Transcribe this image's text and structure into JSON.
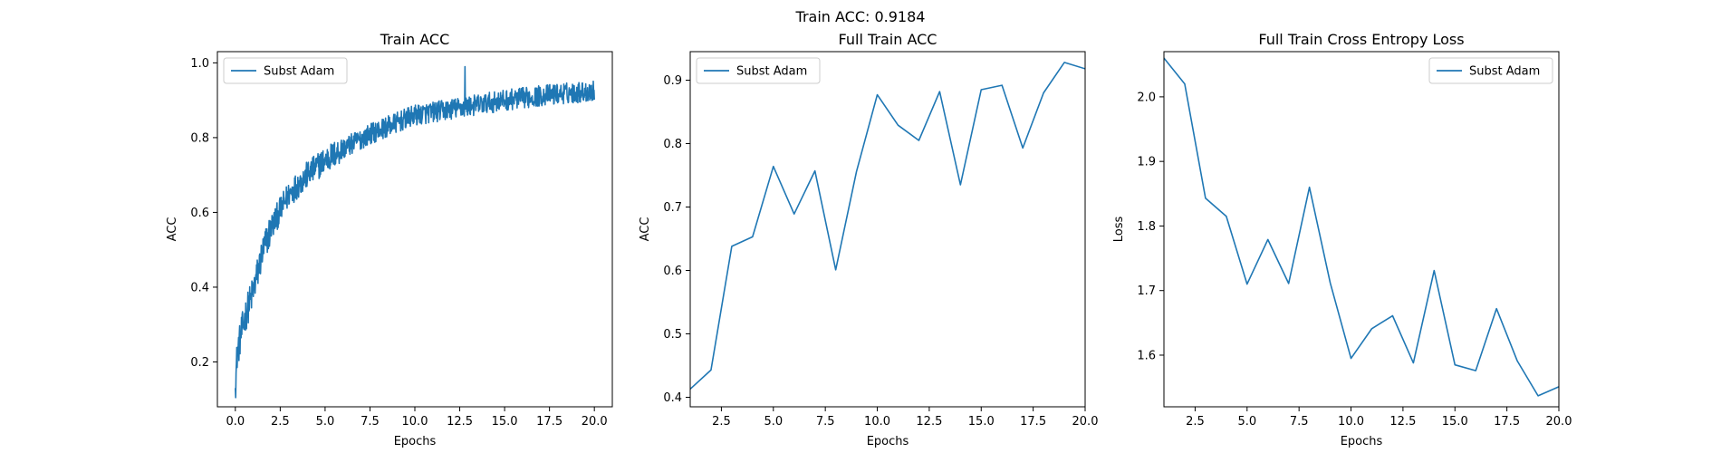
{
  "figure": {
    "suptitle": "Train ACC: 0.9184"
  },
  "chart_data": [
    {
      "type": "line",
      "title": "Train ACC",
      "xlabel": "Epochs",
      "ylabel": "ACC",
      "xlim": [
        -1.0,
        21.0
      ],
      "ylim": [
        0.08,
        1.03
      ],
      "xticks": [
        0.0,
        2.5,
        5.0,
        7.5,
        10.0,
        12.5,
        15.0,
        17.5,
        20.0
      ],
      "xtick_labels": [
        "0.0",
        "2.5",
        "5.0",
        "7.5",
        "10.0",
        "12.5",
        "15.0",
        "17.5",
        "20.0"
      ],
      "yticks": [
        0.2,
        0.4,
        0.6,
        0.8,
        1.0
      ],
      "ytick_labels": [
        "0.2",
        "0.4",
        "0.6",
        "0.8",
        "1.0"
      ],
      "legend_loc": "upper left",
      "series": [
        {
          "name": "Subst Adam",
          "color": "#1f77b4",
          "trend_anchors": [
            [
              0.0,
              0.13
            ],
            [
              0.1,
              0.22
            ],
            [
              0.3,
              0.27
            ],
            [
              0.6,
              0.33
            ],
            [
              1.0,
              0.39
            ],
            [
              1.5,
              0.49
            ],
            [
              2.0,
              0.56
            ],
            [
              3.0,
              0.65
            ],
            [
              4.0,
              0.7
            ],
            [
              5.0,
              0.74
            ],
            [
              6.0,
              0.77
            ],
            [
              7.5,
              0.81
            ],
            [
              9.0,
              0.84
            ],
            [
              10.0,
              0.86
            ],
            [
              12.5,
              0.88
            ],
            [
              15.0,
              0.9
            ],
            [
              17.5,
              0.915
            ],
            [
              20.0,
              0.925
            ]
          ],
          "noise_amplitude": 0.028,
          "points": 1000,
          "note_max_value": [
            12.8,
            0.99
          ]
        }
      ]
    },
    {
      "type": "line",
      "title": "Full Train ACC",
      "xlabel": "Epochs",
      "ylabel": "ACC",
      "xlim": [
        1,
        20
      ],
      "ylim": [
        0.385,
        0.945
      ],
      "xticks": [
        2.5,
        5.0,
        7.5,
        10.0,
        12.5,
        15.0,
        17.5,
        20.0
      ],
      "xtick_labels": [
        "2.5",
        "5.0",
        "7.5",
        "10.0",
        "12.5",
        "15.0",
        "17.5",
        "20.0"
      ],
      "yticks": [
        0.4,
        0.5,
        0.6,
        0.7,
        0.8,
        0.9
      ],
      "ytick_labels": [
        "0.4",
        "0.5",
        "0.6",
        "0.7",
        "0.8",
        "0.9"
      ],
      "legend_loc": "upper left",
      "series": [
        {
          "name": "Subst Adam",
          "color": "#1f77b4",
          "x": [
            1,
            2,
            3,
            4,
            5,
            6,
            7,
            8,
            9,
            10,
            11,
            12,
            13,
            14,
            15,
            16,
            17,
            18,
            19,
            20
          ],
          "values": [
            0.413,
            0.443,
            0.638,
            0.653,
            0.764,
            0.689,
            0.757,
            0.601,
            0.756,
            0.877,
            0.829,
            0.805,
            0.882,
            0.735,
            0.885,
            0.892,
            0.793,
            0.88,
            0.928,
            0.918
          ]
        }
      ]
    },
    {
      "type": "line",
      "title": "Full Train Cross Entropy Loss",
      "xlabel": "Epochs",
      "ylabel": "Loss",
      "xlim": [
        1,
        20
      ],
      "ylim": [
        1.52,
        2.07
      ],
      "xticks": [
        2.5,
        5.0,
        7.5,
        10.0,
        12.5,
        15.0,
        17.5,
        20.0
      ],
      "xtick_labels": [
        "2.5",
        "5.0",
        "7.5",
        "10.0",
        "12.5",
        "15.0",
        "17.5",
        "20.0"
      ],
      "yticks": [
        1.6,
        1.7,
        1.8,
        1.9,
        2.0
      ],
      "ytick_labels": [
        "1.6",
        "1.7",
        "1.8",
        "1.9",
        "2.0"
      ],
      "legend_loc": "upper right",
      "series": [
        {
          "name": "Subst Adam",
          "color": "#1f77b4",
          "x": [
            1,
            2,
            3,
            4,
            5,
            6,
            7,
            8,
            9,
            10,
            11,
            12,
            13,
            14,
            15,
            16,
            17,
            18,
            19,
            20
          ],
          "values": [
            2.06,
            2.02,
            1.843,
            1.815,
            1.71,
            1.779,
            1.711,
            1.86,
            1.712,
            1.595,
            1.641,
            1.661,
            1.588,
            1.731,
            1.585,
            1.576,
            1.672,
            1.591,
            1.537,
            1.551
          ]
        }
      ]
    }
  ]
}
